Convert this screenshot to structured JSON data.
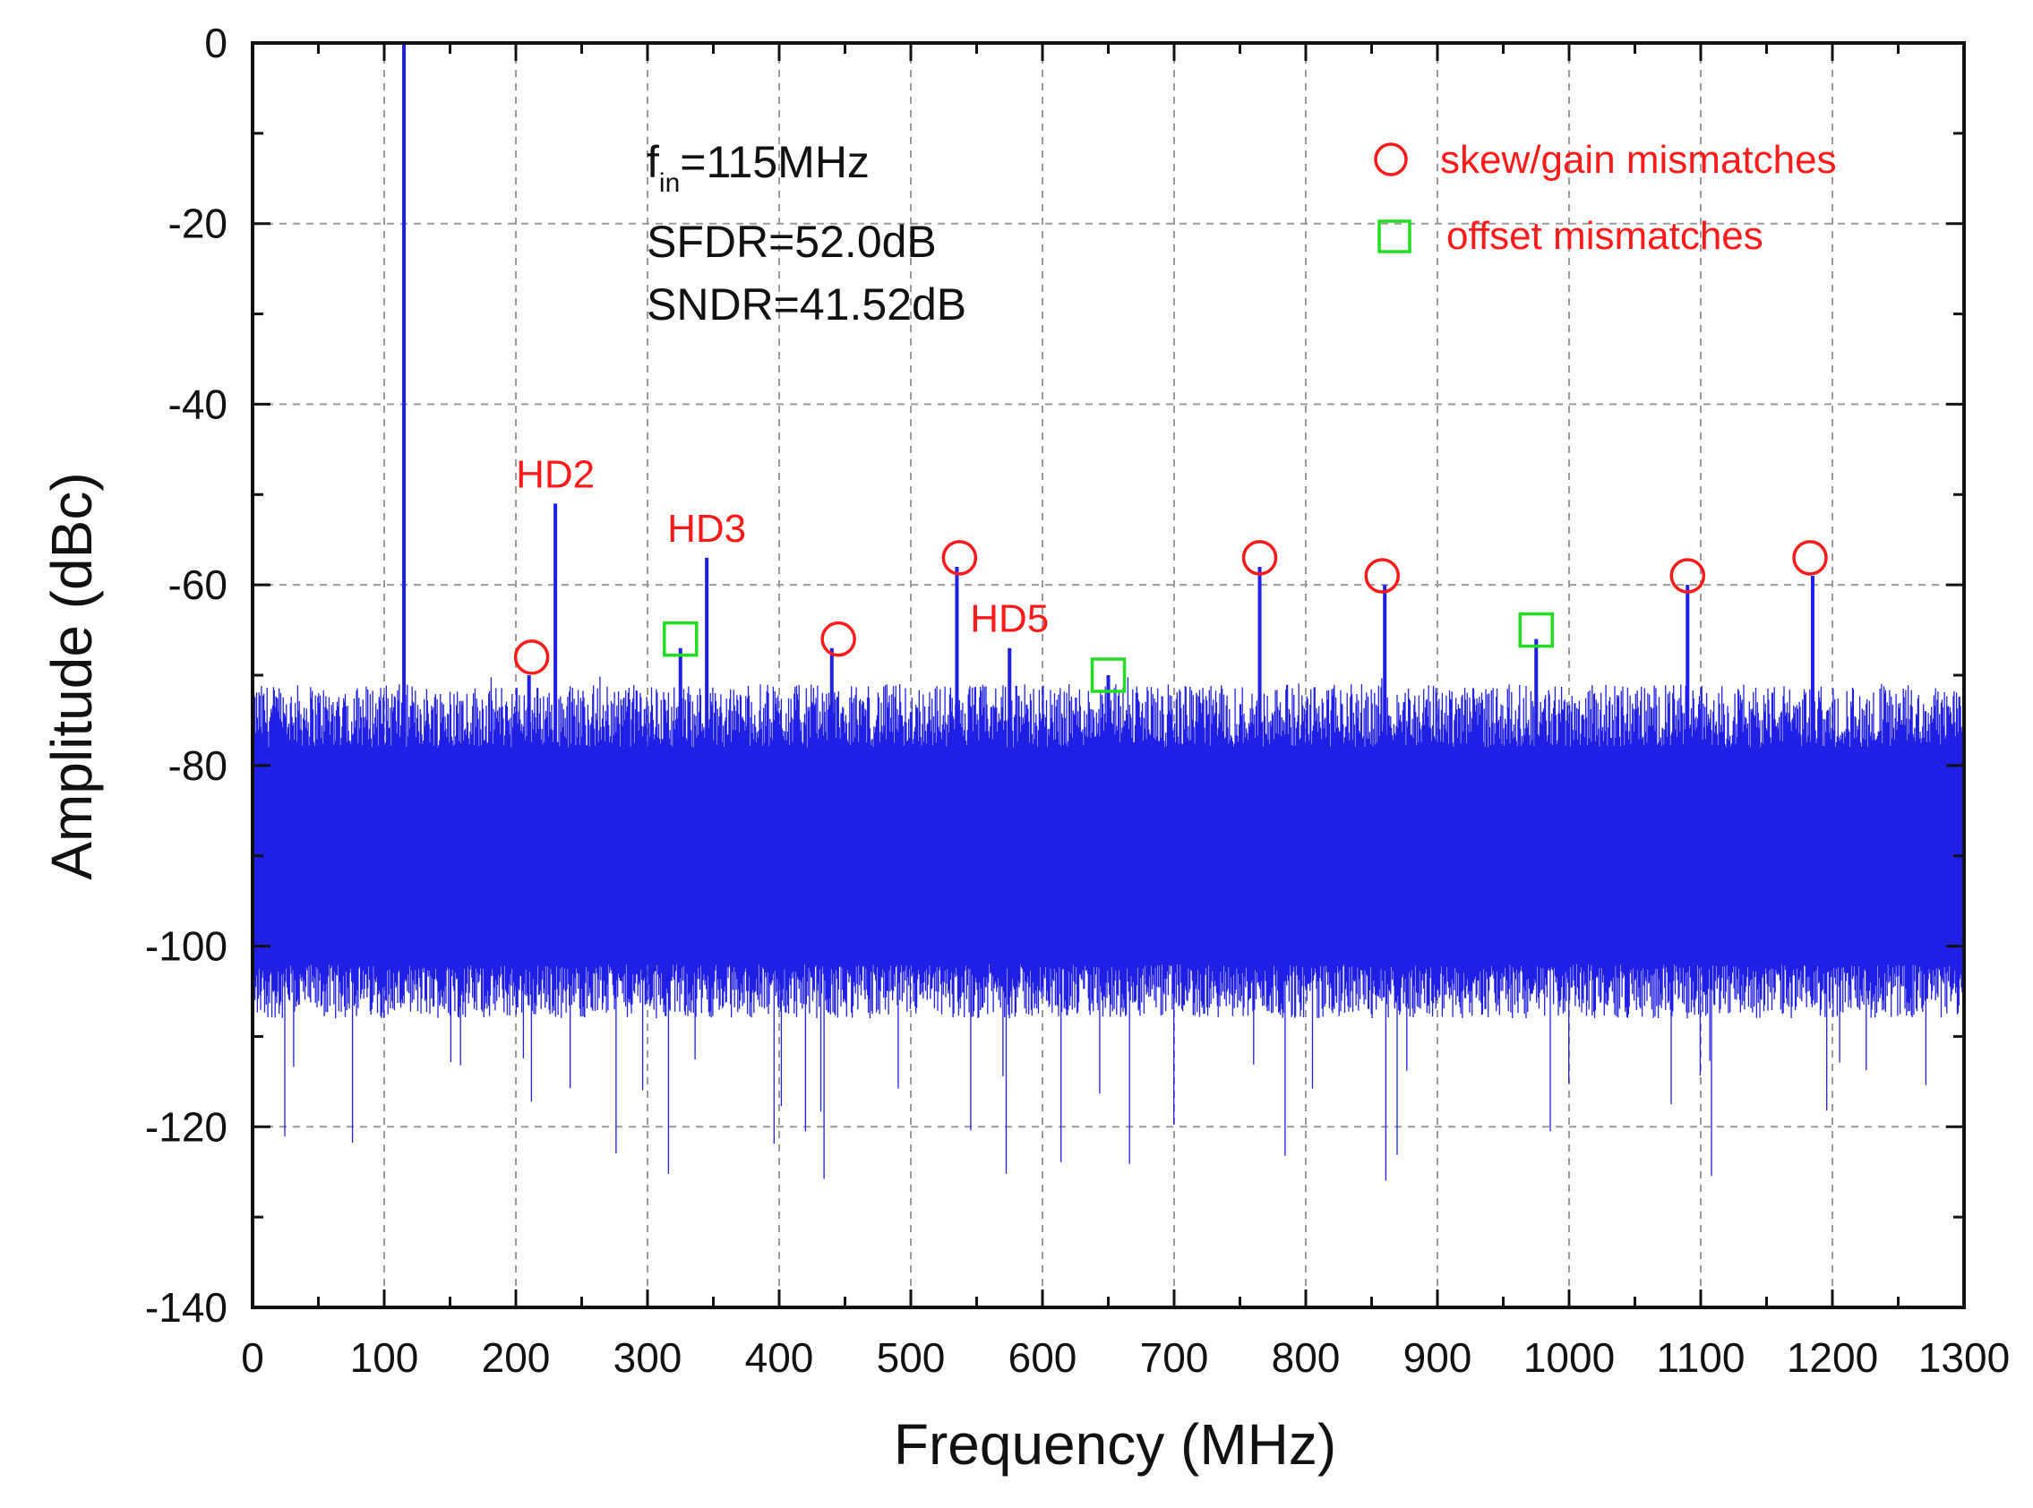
{
  "chart_data": {
    "type": "line",
    "title": "",
    "xlabel": "Frequency (MHz)",
    "ylabel": "Amplitude (dBc)",
    "xlim": [
      0,
      1300
    ],
    "ylim": [
      -140,
      0
    ],
    "x_ticks": [
      "0",
      "100",
      "200",
      "300",
      "400",
      "500",
      "600",
      "700",
      "800",
      "900",
      "1000",
      "1100",
      "1200",
      "1300"
    ],
    "y_ticks": [
      "0",
      "-20",
      "-40",
      "-60",
      "-80",
      "-100",
      "-120",
      "-140"
    ],
    "grid": true,
    "series": [
      {
        "color": "#1f1fe6",
        "noise_floor_dBc": [
          -105,
          -72
        ],
        "spikes": [
          {
            "x": 115,
            "y": 0
          },
          {
            "x": 230,
            "y": -51
          },
          {
            "x": 345,
            "y": -57
          },
          {
            "x": 210,
            "y": -70
          },
          {
            "x": 325,
            "y": -67
          },
          {
            "x": 440,
            "y": -67
          },
          {
            "x": 535,
            "y": -58
          },
          {
            "x": 575,
            "y": -67
          },
          {
            "x": 650,
            "y": -70
          },
          {
            "x": 765,
            "y": -58
          },
          {
            "x": 860,
            "y": -60
          },
          {
            "x": 975,
            "y": -66
          },
          {
            "x": 1090,
            "y": -60
          },
          {
            "x": 1185,
            "y": -59
          }
        ]
      }
    ],
    "info_lines": {
      "fin_main": "f",
      "fin_sub": "in",
      "fin_rest": "=115MHz",
      "sfdr": "SFDR=52.0dB",
      "sndr": "SNDR=41.52dB"
    },
    "annotations": [
      {
        "label": "HD2",
        "x": 230,
        "y": -51
      },
      {
        "label": "HD3",
        "x": 345,
        "y": -57
      },
      {
        "label": "HD5",
        "x": 575,
        "y": -67
      }
    ],
    "circle_markers": [
      {
        "x": 212,
        "y": -68
      },
      {
        "x": 445,
        "y": -66
      },
      {
        "x": 537,
        "y": -57
      },
      {
        "x": 765,
        "y": -57
      },
      {
        "x": 858,
        "y": -59
      },
      {
        "x": 1090,
        "y": -59
      },
      {
        "x": 1183,
        "y": -57
      }
    ],
    "square_markers": [
      {
        "x": 325,
        "y": -66
      },
      {
        "x": 650,
        "y": -70
      },
      {
        "x": 975,
        "y": -65
      }
    ],
    "legend": {
      "placement": "top-right",
      "circle_label": "skew/gain mismatches",
      "square_label": "offset mismatches"
    },
    "colors": {
      "trace": "#1f1fe6",
      "annotation": "#ff1a1a",
      "circle": "#ff1a1a",
      "square": "#22dd22"
    }
  }
}
